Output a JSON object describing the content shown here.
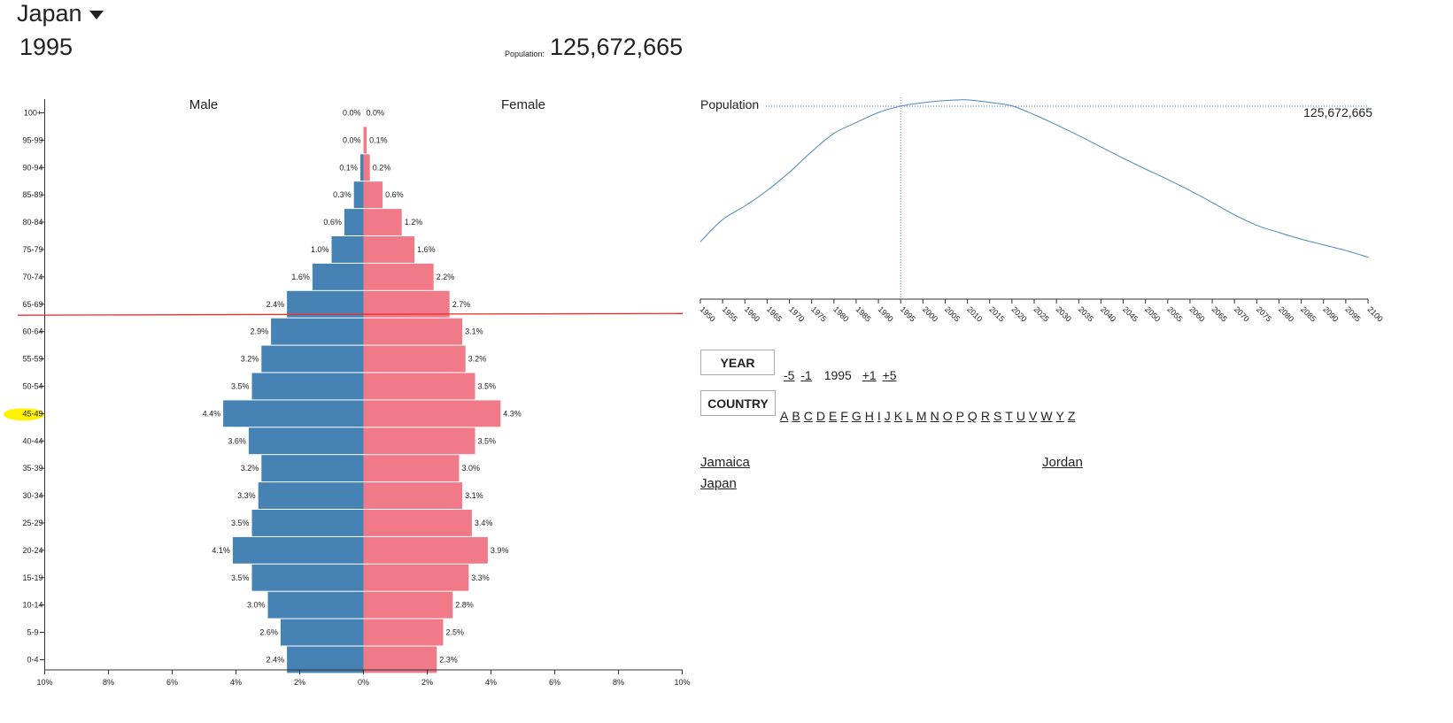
{
  "header": {
    "country": "Japan",
    "year": "1995",
    "population_label": "Population:",
    "population_value": "125,672,665"
  },
  "colors": {
    "male": "#4682b4",
    "female": "#f07a88",
    "line": "#4a86c2",
    "marker": "#ef2b2b",
    "highlight": "#fff200"
  },
  "chart_data": [
    {
      "type": "bar",
      "subtype": "population-pyramid",
      "categories": [
        "100+",
        "95-99",
        "90-94",
        "85-89",
        "80-84",
        "75-79",
        "70-74",
        "65-69",
        "60-64",
        "55-59",
        "50-54",
        "45-49",
        "40-44",
        "35-39",
        "30-34",
        "25-29",
        "20-24",
        "15-19",
        "10-14",
        "5-9",
        "0-4"
      ],
      "series": [
        {
          "name": "Male",
          "values": [
            0.0,
            0.0,
            0.1,
            0.3,
            0.6,
            1.0,
            1.6,
            2.4,
            2.9,
            3.2,
            3.5,
            4.4,
            3.6,
            3.2,
            3.3,
            3.5,
            4.1,
            3.5,
            3.0,
            2.6,
            2.4
          ]
        },
        {
          "name": "Female",
          "values": [
            0.0,
            0.1,
            0.2,
            0.6,
            1.2,
            1.6,
            2.2,
            2.7,
            3.1,
            3.2,
            3.5,
            4.3,
            3.5,
            3.0,
            3.1,
            3.4,
            3.9,
            3.3,
            2.8,
            2.5,
            2.3
          ]
        }
      ],
      "xticks": [
        "10%",
        "8%",
        "6%",
        "4%",
        "2%",
        "0%",
        "2%",
        "4%",
        "6%",
        "8%",
        "10%"
      ],
      "xlim": [
        -10,
        10
      ],
      "highlighted_category": "45-49",
      "marker_line_between": [
        "65-69",
        "60-64"
      ]
    },
    {
      "type": "line",
      "ylabel": "Population",
      "x": [
        1950,
        1955,
        1960,
        1965,
        1970,
        1975,
        1980,
        1985,
        1990,
        1995,
        2000,
        2005,
        2010,
        2015,
        2020,
        2025,
        2030,
        2035,
        2040,
        2045,
        2050,
        2055,
        2060,
        2065,
        2070,
        2075,
        2080,
        2085,
        2090,
        2095,
        2100
      ],
      "y": [
        82.8,
        89.8,
        94.1,
        99.0,
        104.8,
        111.3,
        117.1,
        120.5,
        123.7,
        125.7,
        126.8,
        127.5,
        127.7,
        126.9,
        125.8,
        123.0,
        119.8,
        116.4,
        112.8,
        109.2,
        105.8,
        102.5,
        99.0,
        95.2,
        91.3,
        88.0,
        85.7,
        83.6,
        81.8,
        80.0,
        77.9
      ],
      "ylim": [
        77.5,
        128.5
      ],
      "xticks": [
        "1950",
        "1955",
        "1960",
        "1965",
        "1970",
        "1975",
        "1980",
        "1985",
        "1990",
        "1995",
        "2000",
        "2005",
        "2010",
        "2015",
        "2020",
        "2025",
        "2030",
        "2035",
        "2040",
        "2045",
        "2050",
        "2055",
        "2060",
        "2065",
        "2070",
        "2075",
        "2080",
        "2085",
        "2090",
        "2095",
        "2100"
      ],
      "selected_x": 1995,
      "selected_label": "125,672,665"
    }
  ],
  "pyramid_titles": {
    "male": "Male",
    "female": "Female"
  },
  "controls": {
    "year_button": "YEAR",
    "minus5": "-5",
    "minus1": "-1",
    "year": "1995",
    "plus1": "+1",
    "plus5": "+5",
    "country_button": "COUNTRY",
    "letters": [
      "A",
      "B",
      "C",
      "D",
      "E",
      "F",
      "G",
      "H",
      "I",
      "J",
      "K",
      "L",
      "M",
      "N",
      "O",
      "P",
      "Q",
      "R",
      "S",
      "T",
      "U",
      "V",
      "W",
      "Y",
      "Z"
    ],
    "countries": [
      "Jamaica",
      "Jordan",
      "Japan"
    ]
  }
}
